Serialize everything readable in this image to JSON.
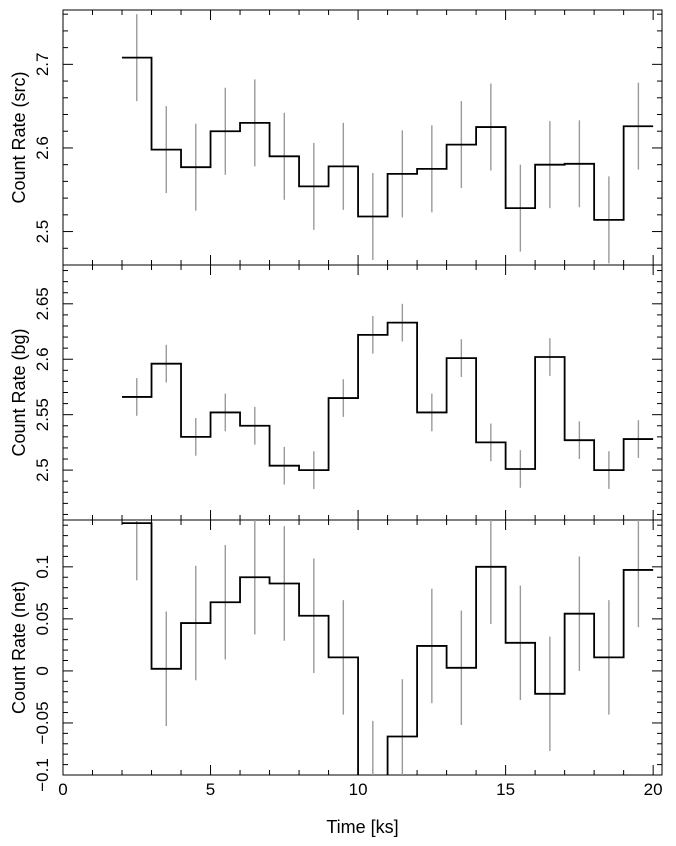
{
  "chart_data": {
    "type": "line",
    "layout": "stacked-panels",
    "xlabel": "Time [ks]",
    "xlim": [
      0,
      20.3
    ],
    "x_ticks": [
      0,
      5,
      10,
      15,
      20
    ],
    "x_tick_labels": [
      "0",
      "5",
      "10",
      "15",
      "20"
    ],
    "bin_width": 1,
    "bin_centers": [
      2.5,
      3.5,
      4.5,
      5.5,
      6.5,
      7.5,
      8.5,
      9.5,
      10.5,
      11.5,
      12.5,
      13.5,
      14.5,
      15.5,
      16.5,
      17.5,
      18.5,
      19.5
    ],
    "colors": {
      "step": "#000000",
      "error_bar": "#9a9a9a",
      "frame": "#000000"
    },
    "panels": [
      {
        "ylabel": "Count Rate (src)",
        "ylim": [
          2.46,
          2.765
        ],
        "y_ticks": [
          2.5,
          2.6,
          2.7
        ],
        "y_tick_labels": [
          "2.5",
          "2.6",
          "2.7"
        ],
        "series": [
          {
            "values": [
              2.708,
              2.598,
              2.577,
              2.62,
              2.63,
              2.59,
              2.554,
              2.578,
              2.518,
              2.569,
              2.575,
              2.604,
              2.625,
              2.528,
              2.58,
              2.581,
              2.514,
              2.626
            ],
            "errors": [
              0.052,
              0.052,
              0.052,
              0.052,
              0.052,
              0.052,
              0.052,
              0.052,
              0.052,
              0.052,
              0.052,
              0.052,
              0.052,
              0.052,
              0.052,
              0.052,
              0.052,
              0.052
            ]
          }
        ]
      },
      {
        "ylabel": "Count Rate (bg)",
        "ylim": [
          2.455,
          2.685
        ],
        "y_ticks": [
          2.5,
          2.55,
          2.6,
          2.65
        ],
        "y_tick_labels": [
          "2.5",
          "2.55",
          "2.6",
          "2.65"
        ],
        "series": [
          {
            "values": [
              2.566,
              2.596,
              2.53,
              2.552,
              2.54,
              2.504,
              2.5,
              2.565,
              2.622,
              2.633,
              2.552,
              2.601,
              2.525,
              2.501,
              2.602,
              2.527,
              2.5,
              2.528
            ],
            "errors": [
              0.017,
              0.017,
              0.017,
              0.017,
              0.017,
              0.017,
              0.017,
              0.017,
              0.017,
              0.017,
              0.017,
              0.017,
              0.017,
              0.017,
              0.017,
              0.017,
              0.017,
              0.017
            ]
          }
        ]
      },
      {
        "ylabel": "Count Rate (net)",
        "ylim": [
          -0.1,
          0.145
        ],
        "y_ticks": [
          -0.1,
          -0.05,
          0,
          0.05,
          0.1
        ],
        "y_tick_labels": [
          "−0.1",
          "−0.05",
          "0",
          "0.05",
          "0.1"
        ],
        "series": [
          {
            "values": [
              0.142,
              0.002,
              0.046,
              0.066,
              0.09,
              0.084,
              0.053,
              0.013,
              -0.103,
              -0.063,
              0.024,
              0.003,
              0.1,
              0.027,
              -0.022,
              0.055,
              0.013,
              0.097
            ],
            "errors": [
              0.055,
              0.055,
              0.055,
              0.055,
              0.055,
              0.055,
              0.055,
              0.055,
              0.055,
              0.055,
              0.055,
              0.055,
              0.055,
              0.055,
              0.055,
              0.055,
              0.055,
              0.055
            ]
          }
        ]
      }
    ]
  }
}
